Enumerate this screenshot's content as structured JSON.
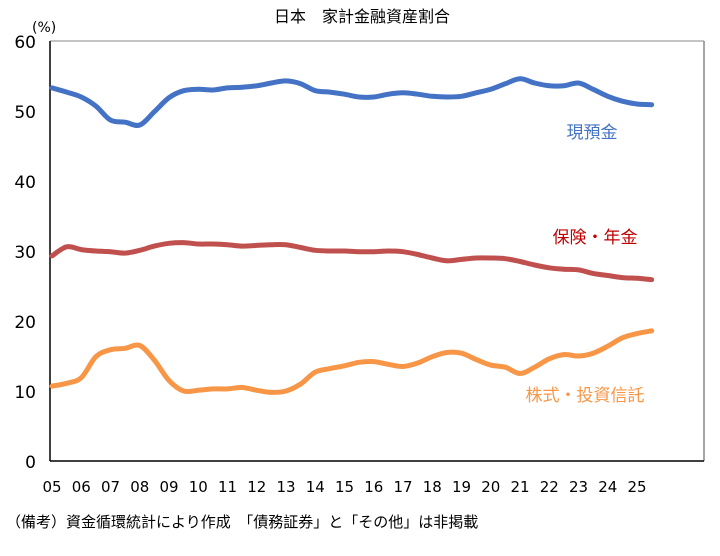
{
  "chart_data": {
    "type": "line",
    "title": "日本　家計金融資産割合",
    "ylabel": "(%)",
    "xlabel": "",
    "ylim": [
      0,
      60
    ],
    "yticks": [
      0,
      10,
      20,
      30,
      40,
      50,
      60
    ],
    "xlim": [
      5,
      26.7
    ],
    "xtick_labels": [
      "05",
      "06",
      "07",
      "08",
      "09",
      "10",
      "11",
      "12",
      "13",
      "14",
      "15",
      "16",
      "17",
      "18",
      "19",
      "20",
      "21",
      "22",
      "23",
      "24",
      "25"
    ],
    "grid": false,
    "legend": "inline labels at right",
    "x": [
      5,
      5.5,
      6,
      6.5,
      7,
      7.5,
      8,
      8.5,
      9,
      9.5,
      10,
      10.5,
      11,
      11.5,
      12,
      12.5,
      13,
      13.5,
      14,
      14.5,
      15,
      15.5,
      16,
      16.5,
      17,
      17.5,
      18,
      18.5,
      19,
      19.5,
      20,
      20.5,
      21,
      21.5,
      22,
      22.5,
      23,
      23.5,
      24,
      24.5,
      25,
      25.5
    ],
    "series": [
      {
        "name": "現預金",
        "color": "#4472C4",
        "label_color": "#4472C4",
        "values": [
          53.3,
          52.7,
          52.0,
          50.7,
          48.7,
          48.4,
          48.0,
          49.9,
          51.9,
          52.9,
          53.1,
          53.0,
          53.3,
          53.4,
          53.6,
          54.0,
          54.3,
          53.9,
          52.9,
          52.7,
          52.4,
          52.0,
          52.0,
          52.4,
          52.6,
          52.4,
          52.1,
          52.0,
          52.1,
          52.6,
          53.1,
          53.9,
          54.6,
          54.0,
          53.6,
          53.6,
          54.0,
          53.1,
          52.1,
          51.4,
          51.0,
          50.9
        ],
        "label_y": 47
      },
      {
        "name": "保険・年金",
        "color": "#C0504D",
        "label_color": "#C00000",
        "values": [
          29.3,
          30.6,
          30.2,
          30.0,
          29.9,
          29.7,
          30.1,
          30.7,
          31.1,
          31.2,
          31.0,
          31.0,
          30.9,
          30.7,
          30.8,
          30.9,
          30.9,
          30.5,
          30.1,
          30.0,
          30.0,
          29.9,
          29.9,
          30.0,
          29.9,
          29.5,
          29.0,
          28.6,
          28.8,
          29.0,
          29.0,
          28.9,
          28.5,
          28.0,
          27.6,
          27.4,
          27.3,
          26.8,
          26.5,
          26.2,
          26.1,
          25.9
        ],
        "label_y": 32
      },
      {
        "name": "株式・投資信託",
        "color": "#F79646",
        "label_color": "#F79646",
        "values": [
          10.7,
          11.1,
          11.9,
          14.9,
          15.9,
          16.1,
          16.5,
          14.4,
          11.5,
          10.0,
          10.1,
          10.3,
          10.3,
          10.5,
          10.1,
          9.8,
          10.0,
          11.0,
          12.7,
          13.2,
          13.6,
          14.1,
          14.2,
          13.8,
          13.5,
          14.0,
          14.9,
          15.5,
          15.4,
          14.5,
          13.7,
          13.4,
          12.5,
          13.4,
          14.6,
          15.2,
          15.0,
          15.4,
          16.4,
          17.6,
          18.2,
          18.6
        ],
        "label_y": 9.4
      }
    ],
    "footnote": "（備考）資金循環統計により作成　「債務証券」と「その他」は非掲載"
  }
}
